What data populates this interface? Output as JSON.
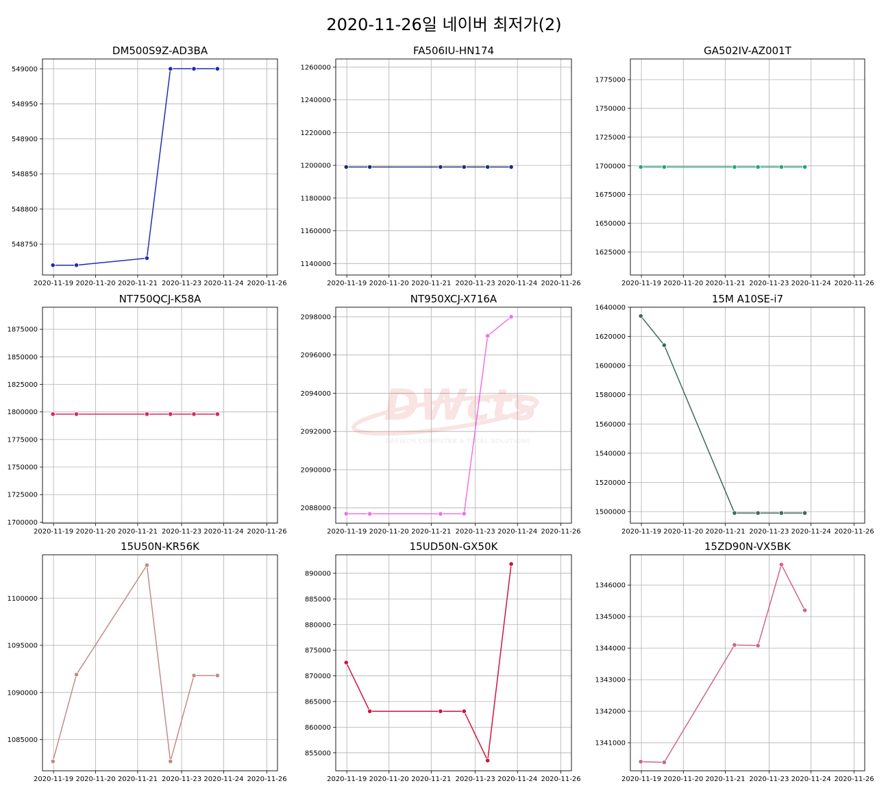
{
  "title": "2020-11-26일 네이버 최저가(2)",
  "watermark": {
    "logo_text": "DWcts",
    "tagline": "DAEWON COMPUTER & TOTAL SOLUTIONS"
  },
  "chart_data": [
    {
      "type": "line",
      "title": "DM500S9Z-AD3BA",
      "color": "#1f2ab8",
      "x": [
        "2020-11-18 20:00",
        "2020-11-19 14:00",
        "2020-11-21 20:00",
        "2020-11-22 14:00",
        "2020-11-23 08:00",
        "2020-11-24 02:00"
      ],
      "values": [
        548720,
        548720,
        548730,
        549000,
        549000,
        549000
      ],
      "xticks": [
        "2020-11-19",
        "2020-11-20",
        "2020-11-21",
        "2020-11-23",
        "2020-11-24",
        "2020-11-26"
      ],
      "yticks": [
        548750,
        548800,
        548850,
        548900,
        548950,
        549000
      ],
      "ylim": [
        548706,
        549014
      ],
      "grid": true
    },
    {
      "type": "line",
      "title": "FA506IU-HN174",
      "color": "#1c3170",
      "x": [
        "2020-11-18 20:00",
        "2020-11-19 14:00",
        "2020-11-21 20:00",
        "2020-11-22 14:00",
        "2020-11-23 08:00",
        "2020-11-24 02:00"
      ],
      "values": [
        1199000,
        1199000,
        1199000,
        1199000,
        1199000,
        1199000
      ],
      "xticks": [
        "2020-11-19",
        "2020-11-20",
        "2020-11-21",
        "2020-11-23",
        "2020-11-24",
        "2020-11-26"
      ],
      "yticks": [
        1140000,
        1160000,
        1180000,
        1200000,
        1220000,
        1240000,
        1260000
      ],
      "ylim": [
        1133000,
        1265000
      ],
      "grid": true
    },
    {
      "type": "line",
      "title": "GA502IV-AZ001T",
      "color": "#23a57c",
      "x": [
        "2020-11-18 20:00",
        "2020-11-19 14:00",
        "2020-11-21 20:00",
        "2020-11-22 14:00",
        "2020-11-23 08:00",
        "2020-11-24 02:00"
      ],
      "values": [
        1699000,
        1699000,
        1699000,
        1699000,
        1699000,
        1699000
      ],
      "xticks": [
        "2020-11-19",
        "2020-11-20",
        "2020-11-21",
        "2020-11-23",
        "2020-11-24",
        "2020-11-26"
      ],
      "yticks": [
        1625000,
        1650000,
        1675000,
        1700000,
        1725000,
        1750000,
        1775000
      ],
      "ylim": [
        1605000,
        1793000
      ],
      "grid": true
    },
    {
      "type": "line",
      "title": "NT750QCJ-K58A",
      "color": "#d42a5e",
      "x": [
        "2020-11-18 20:00",
        "2020-11-19 14:00",
        "2020-11-21 20:00",
        "2020-11-22 14:00",
        "2020-11-23 08:00",
        "2020-11-24 02:00"
      ],
      "values": [
        1798000,
        1798000,
        1798000,
        1798000,
        1798000,
        1798000
      ],
      "xticks": [
        "2020-11-19",
        "2020-11-20",
        "2020-11-21",
        "2020-11-23",
        "2020-11-24",
        "2020-11-26"
      ],
      "yticks": [
        1700000,
        1725000,
        1750000,
        1775000,
        1800000,
        1825000,
        1850000,
        1875000
      ],
      "ylim": [
        1699000,
        1895000
      ],
      "grid": true
    },
    {
      "type": "line",
      "title": "NT950XCJ-X716A",
      "color": "#f070e8",
      "x": [
        "2020-11-18 20:00",
        "2020-11-19 14:00",
        "2020-11-21 20:00",
        "2020-11-22 14:00",
        "2020-11-23 08:00",
        "2020-11-24 02:00"
      ],
      "values": [
        2087700,
        2087690,
        2087690,
        2087700,
        2097000,
        2098000
      ],
      "xticks": [
        "2020-11-19",
        "2020-11-20",
        "2020-11-21",
        "2020-11-23",
        "2020-11-24",
        "2020-11-26"
      ],
      "yticks": [
        2088000,
        2090000,
        2092000,
        2094000,
        2096000,
        2098000
      ],
      "ylim": [
        2087200,
        2098500
      ],
      "grid": true
    },
    {
      "type": "line",
      "title": "15M A10SE-i7",
      "color": "#3b6b5a",
      "x": [
        "2020-11-18 20:00",
        "2020-11-19 14:00",
        "2020-11-21 20:00",
        "2020-11-22 14:00",
        "2020-11-23 08:00",
        "2020-11-24 02:00"
      ],
      "values": [
        1634000,
        1614000,
        1499000,
        1499000,
        1499000,
        1499000
      ],
      "xticks": [
        "2020-11-19",
        "2020-11-20",
        "2020-11-21",
        "2020-11-23",
        "2020-11-24",
        "2020-11-26"
      ],
      "yticks": [
        1500000,
        1520000,
        1540000,
        1560000,
        1580000,
        1600000,
        1620000,
        1640000
      ],
      "ylim": [
        1492000,
        1640000
      ],
      "grid": true
    },
    {
      "type": "line",
      "title": "15U50N-KR56K",
      "color": "#c48a85",
      "x": [
        "2020-11-18 20:00",
        "2020-11-19 14:00",
        "2020-11-21 20:00",
        "2020-11-22 14:00",
        "2020-11-23 08:00",
        "2020-11-24 02:00"
      ],
      "values": [
        1082700,
        1091900,
        1103500,
        1082700,
        1091800,
        1091800
      ],
      "xticks": [
        "2020-11-19",
        "2020-11-20",
        "2020-11-21",
        "2020-11-23",
        "2020-11-24",
        "2020-11-26"
      ],
      "yticks": [
        1085000,
        1090000,
        1095000,
        1100000
      ],
      "ylim": [
        1081700,
        1104600
      ],
      "grid": true
    },
    {
      "type": "line",
      "title": "15UD50N-GX50K",
      "color": "#d0123a",
      "x": [
        "2020-11-18 20:00",
        "2020-11-19 14:00",
        "2020-11-21 20:00",
        "2020-11-22 14:00",
        "2020-11-23 08:00",
        "2020-11-24 02:00"
      ],
      "values": [
        872600,
        863100,
        863100,
        863100,
        853500,
        891800
      ],
      "xticks": [
        "2020-11-19",
        "2020-11-20",
        "2020-11-21",
        "2020-11-23",
        "2020-11-24",
        "2020-11-26"
      ],
      "yticks": [
        855000,
        860000,
        865000,
        870000,
        875000,
        880000,
        885000,
        890000
      ],
      "ylim": [
        851500,
        893600
      ],
      "grid": true
    },
    {
      "type": "line",
      "title": "15ZD90N-VX5BK",
      "color": "#d2628a",
      "x": [
        "2020-11-18 20:00",
        "2020-11-19 14:00",
        "2020-11-21 20:00",
        "2020-11-22 14:00",
        "2020-11-23 08:00",
        "2020-11-24 02:00"
      ],
      "values": [
        1340400,
        1340380,
        1344100,
        1344080,
        1346650,
        1345200
      ],
      "xticks": [
        "2020-11-19",
        "2020-11-20",
        "2020-11-21",
        "2020-11-23",
        "2020-11-24",
        "2020-11-26"
      ],
      "yticks": [
        1341000,
        1342000,
        1343000,
        1344000,
        1345000,
        1346000
      ],
      "ylim": [
        1340110,
        1346960
      ],
      "grid": true
    }
  ]
}
